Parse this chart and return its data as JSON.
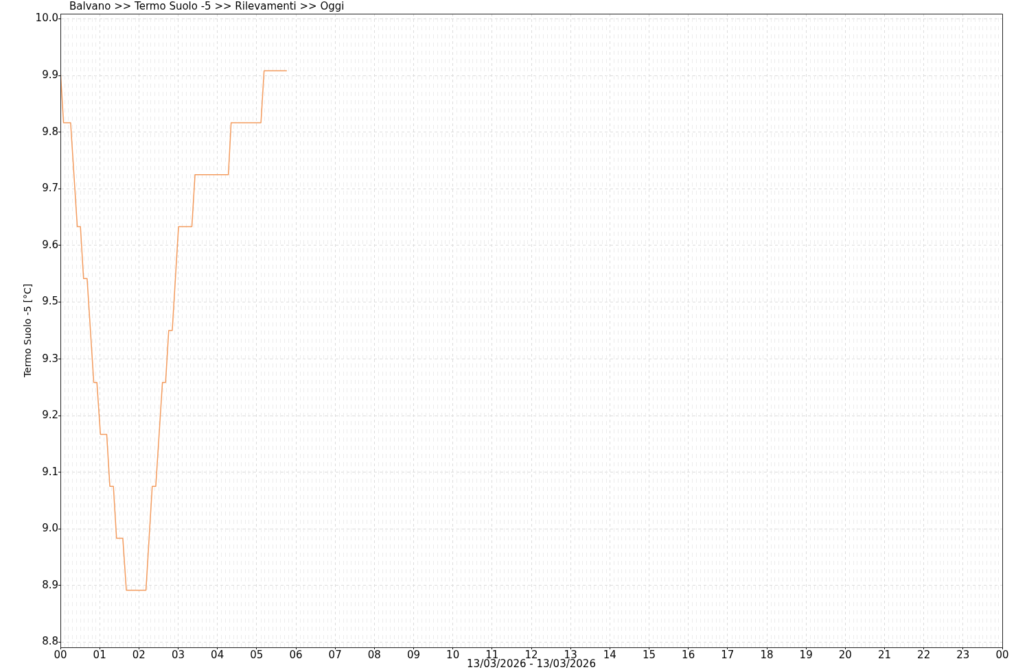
{
  "chart_data": {
    "type": "line",
    "title": "Balvano >> Termo Suolo -5 >> Rilevamenti >> Oggi",
    "xlabel": "13/03/2026 - 13/03/2026",
    "ylabel": "Termo Suolo -5 [°C]",
    "x": [
      0,
      0.08,
      0.26,
      0.43,
      0.51,
      0.59,
      0.68,
      0.85,
      0.93,
      1.02,
      1.18,
      1.26,
      1.35,
      1.43,
      1.59,
      1.68,
      2.18,
      2.34,
      2.43,
      2.6,
      2.68,
      2.76,
      2.85,
      3.01,
      3.35,
      3.43,
      4.28,
      4.35,
      5.11,
      5.19,
      5.77
    ],
    "values": [
      9.9,
      9.8,
      9.8,
      9.6,
      9.6,
      9.5,
      9.5,
      9.3,
      9.3,
      9.2,
      9.2,
      9.1,
      9.1,
      9.0,
      9.0,
      8.9,
      8.9,
      9.1,
      9.1,
      9.3,
      9.3,
      9.4,
      9.4,
      9.6,
      9.6,
      9.7,
      9.7,
      9.8,
      9.8,
      9.9,
      9.9
    ],
    "color": "#f39a5c",
    "xlim": [
      0,
      24
    ],
    "xticks": [
      {
        "value": 0,
        "label": "00"
      },
      {
        "value": 1,
        "label": "01"
      },
      {
        "value": 2,
        "label": "02"
      },
      {
        "value": 3,
        "label": "03"
      },
      {
        "value": 4,
        "label": "04"
      },
      {
        "value": 5,
        "label": "05"
      },
      {
        "value": 6,
        "label": "06"
      },
      {
        "value": 7,
        "label": "07"
      },
      {
        "value": 8,
        "label": "08"
      },
      {
        "value": 9,
        "label": "09"
      },
      {
        "value": 10,
        "label": "10"
      },
      {
        "value": 11,
        "label": "11"
      },
      {
        "value": 12,
        "label": "12"
      },
      {
        "value": 13,
        "label": "13"
      },
      {
        "value": 14,
        "label": "14"
      },
      {
        "value": 15,
        "label": "15"
      },
      {
        "value": 16,
        "label": "16"
      },
      {
        "value": 17,
        "label": "17"
      },
      {
        "value": 18,
        "label": "18"
      },
      {
        "value": 19,
        "label": "19"
      },
      {
        "value": 20,
        "label": "20"
      },
      {
        "value": 21,
        "label": "21"
      },
      {
        "value": 22,
        "label": "22"
      },
      {
        "value": 23,
        "label": "23"
      },
      {
        "value": 24,
        "label": "00"
      }
    ],
    "ylim": [
      8.79,
      10.01
    ],
    "yticks": [
      8.8,
      {
        "value": 8.909,
        "label": "8.9"
      },
      {
        "value": 9.018,
        "label": "9.0"
      },
      {
        "value": 9.127,
        "label": "9.1"
      },
      {
        "value": 9.236,
        "label": "9.2"
      },
      {
        "value": 9.345,
        "label": "9.3"
      },
      {
        "value": 9.455,
        "label": "9.5"
      },
      {
        "value": 9.564,
        "label": "9.6"
      },
      {
        "value": 9.673,
        "label": "9.7"
      },
      {
        "value": 9.782,
        "label": "9.8"
      },
      {
        "value": 9.891,
        "label": "9.9"
      },
      {
        "value": 10,
        "label": "10.0"
      }
    ],
    "grid": true,
    "marker": "none",
    "line_style": "solid"
  }
}
